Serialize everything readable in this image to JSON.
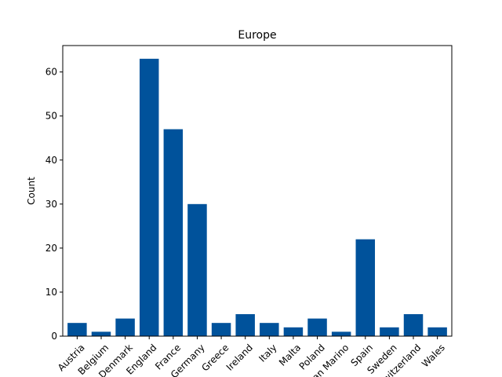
{
  "chart_data": {
    "type": "bar",
    "title": "Europe",
    "xlabel": "",
    "ylabel": "Count",
    "categories": [
      "Austria",
      "Belgium",
      "Denmark",
      "England",
      "France",
      "Germany",
      "Greece",
      "Ireland",
      "Italy",
      "Malta",
      "Poland",
      "San Marino",
      "Spain",
      "Sweden",
      "Switzerland",
      "Wales"
    ],
    "values": [
      3,
      1,
      4,
      63,
      47,
      30,
      3,
      5,
      3,
      2,
      4,
      1,
      22,
      2,
      5,
      2
    ],
    "ylim": [
      0,
      66
    ],
    "yticks": [
      0,
      10,
      20,
      30,
      40,
      50,
      60
    ],
    "bar_color": "#00529b",
    "grid": false,
    "legend": "none"
  }
}
